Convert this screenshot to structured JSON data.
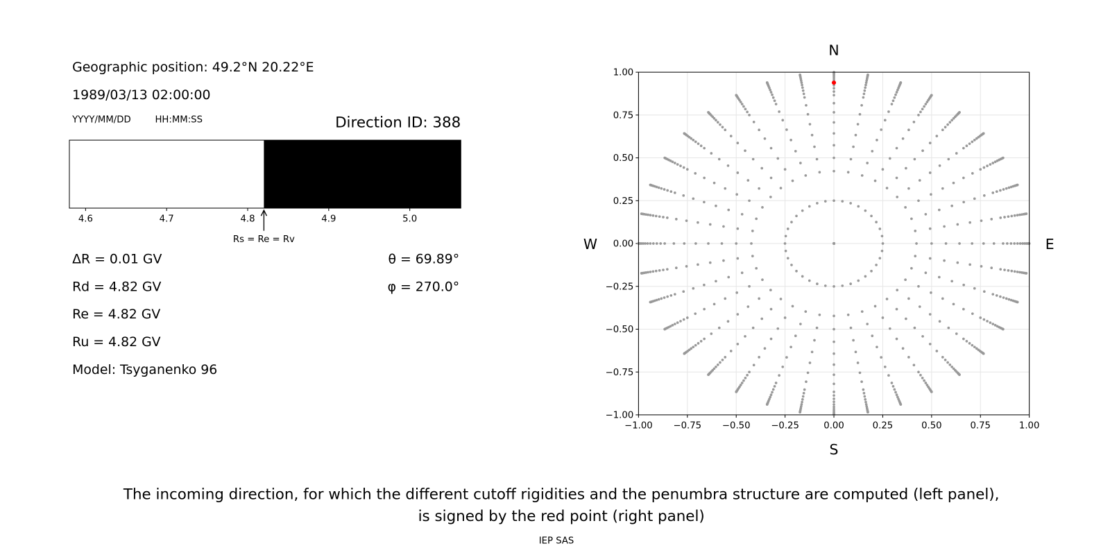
{
  "header": {
    "position": "Geographic position: 49.2°N 20.22°E",
    "datetime": "1989/03/13 02:00:00",
    "date_format": "YYYY/MM/DD",
    "time_format": "HH:MM:SS",
    "direction_id": "Direction ID: 388"
  },
  "results": {
    "delta_r": "ΔR = 0.01 GV",
    "rd": "Rd = 4.82 GV",
    "re": "Re = 4.82 GV",
    "ru": "Ru = 4.82 GV",
    "model": "Model: Tsyganenko 96",
    "theta": "θ = 69.89°",
    "phi": "φ = 270.0°"
  },
  "chart_data": [
    {
      "type": "penumbra",
      "xlim": [
        4.58,
        5.063
      ],
      "xticks": [
        4.6,
        4.7,
        4.8,
        4.9,
        {
          "value": 5,
          "label": "5.0"
        }
      ],
      "cutoff": 4.82,
      "forbidden_color": "#ffffff",
      "allowed_color": "#000000",
      "annotation": "Rs = Re = Rv"
    },
    {
      "type": "direction-map",
      "compass": {
        "north": "N",
        "south": "S",
        "west": "W",
        "east": "E"
      },
      "xlim": [
        -1,
        1
      ],
      "ylim": [
        -1,
        1
      ],
      "xticks": [
        {
          "value": -1,
          "label": "−1.00"
        },
        {
          "value": -0.75,
          "label": "−0.75"
        },
        {
          "value": -0.5,
          "label": "−0.50"
        },
        {
          "value": -0.25,
          "label": "−0.25"
        },
        {
          "value": 0,
          "label": "0.00"
        },
        {
          "value": 0.25,
          "label": "0.25"
        },
        {
          "value": 0.5,
          "label": "0.50"
        },
        {
          "value": 0.75,
          "label": "0.75"
        },
        {
          "value": 1,
          "label": "1.00"
        }
      ],
      "yticks": [
        {
          "value": -1,
          "label": "−1.00"
        },
        {
          "value": -0.75,
          "label": "−0.75"
        },
        {
          "value": -0.5,
          "label": "−0.50"
        },
        {
          "value": -0.25,
          "label": "−0.25"
        },
        {
          "value": 0,
          "label": "0.00"
        },
        {
          "value": 0.25,
          "label": "0.25"
        },
        {
          "value": 0.5,
          "label": "0.50"
        },
        {
          "value": 0.75,
          "label": "0.75"
        },
        {
          "value": 1,
          "label": "1.00"
        }
      ],
      "grid": true,
      "zenith_angles": [
        0,
        14.5,
        25,
        30,
        35,
        40,
        45,
        50,
        55,
        60,
        62.5,
        65,
        67.5,
        70,
        72.5,
        75,
        77.5,
        80,
        82.5,
        85,
        87.5,
        90
      ],
      "azimuths": [
        0,
        10,
        20,
        30,
        40,
        50,
        60,
        70,
        80,
        90,
        100,
        110,
        120,
        130,
        140,
        150,
        160,
        170,
        180,
        190,
        200,
        210,
        220,
        230,
        240,
        250,
        260,
        270,
        280,
        290,
        300,
        310,
        320,
        330,
        340,
        350
      ],
      "color": "#999999",
      "highlight": {
        "zenith": 69.89,
        "azimuth": 270.0,
        "color": "#ff0000"
      }
    }
  ],
  "caption": {
    "line1": "The incoming direction, for which the different cutoff rigidities and the penumbra structure are computed (left panel),",
    "line2": "is signed by the red point (right panel)"
  },
  "footer": "IEP SAS"
}
